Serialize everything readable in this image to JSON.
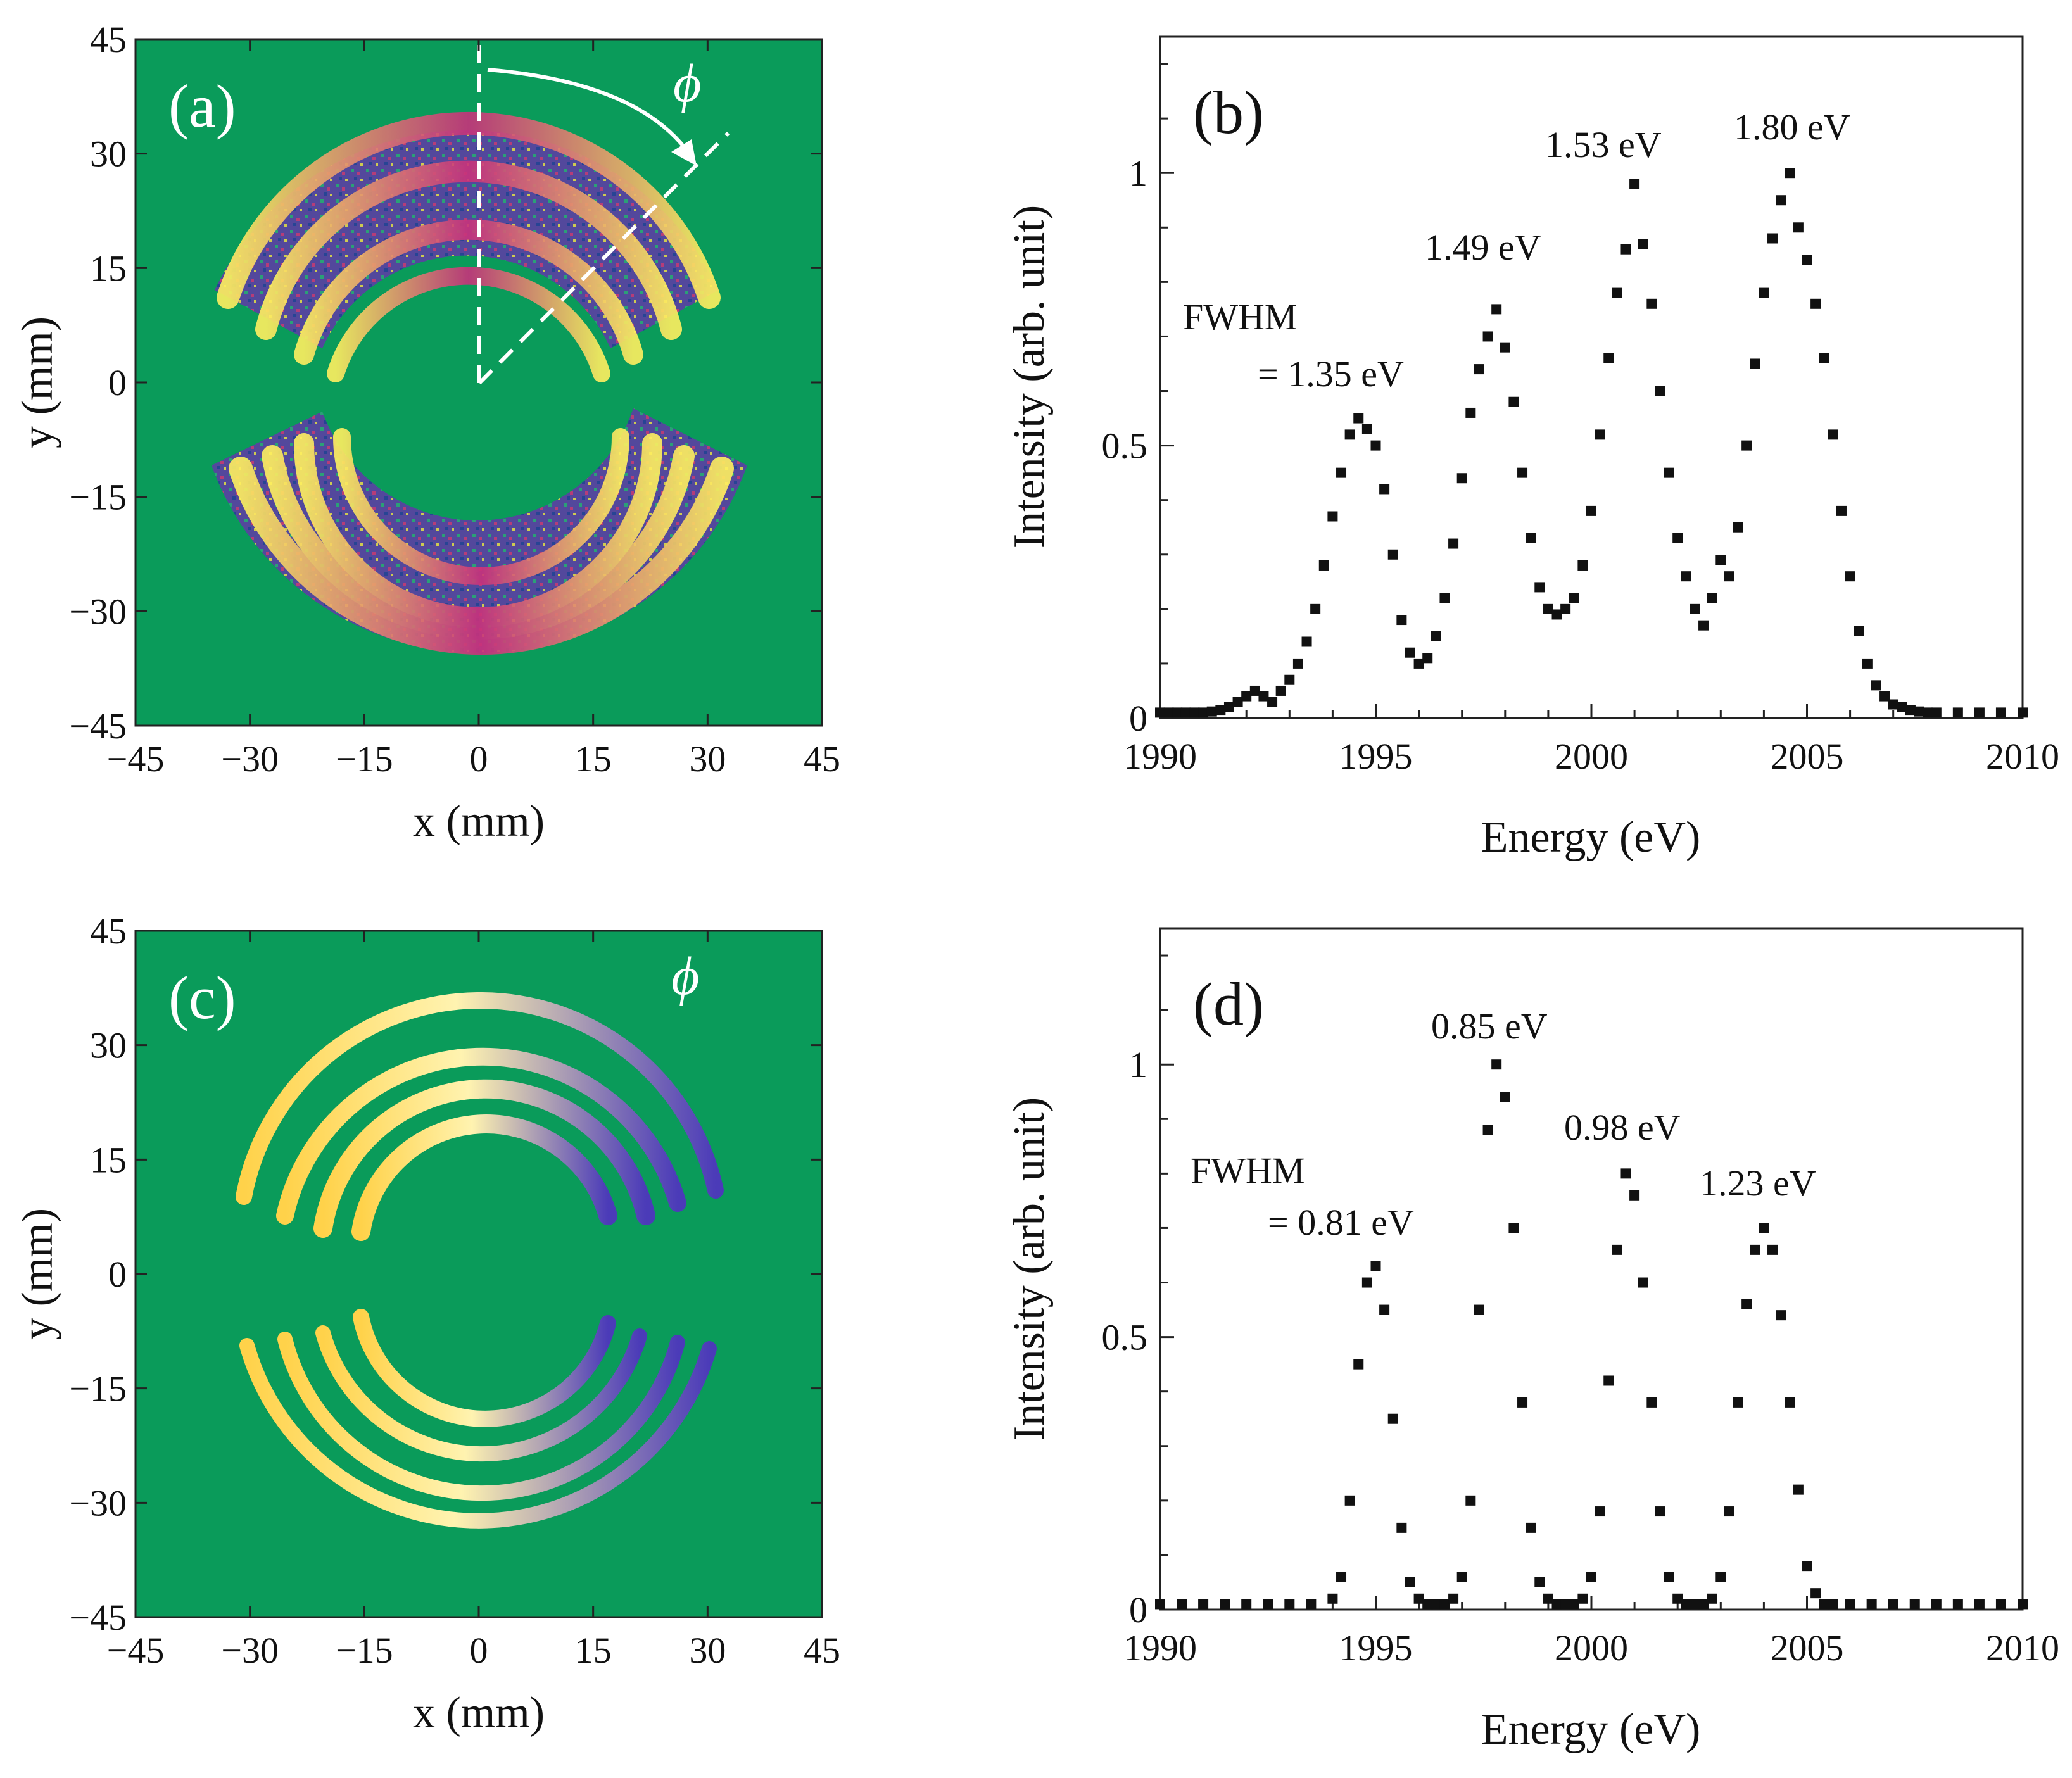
{
  "figure": {
    "panels": [
      {
        "id": "a",
        "label": "(a)",
        "kind": "detector-image",
        "xlabel": "x (mm)",
        "ylabel": "y (mm)",
        "xticks": [
          "−45",
          "−30",
          "−15",
          "0",
          "15",
          "30",
          "45"
        ],
        "yticks": [
          "45",
          "30",
          "15",
          "0",
          "−15",
          "−30",
          "−45"
        ],
        "phi_label": "ϕ",
        "colors": {
          "background": "#0a9b5a",
          "low": "#3a3aa8",
          "mid": "#c8327c",
          "high": "#fff060"
        }
      },
      {
        "id": "c",
        "label": "(c)",
        "kind": "detector-image",
        "xlabel": "x (mm)",
        "ylabel": "y (mm)",
        "xticks": [
          "−45",
          "−30",
          "−15",
          "0",
          "15",
          "30",
          "45"
        ],
        "yticks": [
          "45",
          "30",
          "15",
          "0",
          "−15",
          "−30",
          "−45"
        ],
        "phi_label": "ϕ",
        "colors": {
          "background": "#0a9b5a",
          "low": "#3030a0",
          "mid": "#e0306a",
          "high": "#fff3b0"
        }
      }
    ]
  },
  "chart_data": [
    {
      "panel": "(b)",
      "type": "scatter",
      "xlabel": "Energy (eV)",
      "ylabel": "Intensity (arb. unit)",
      "xlim": [
        1990,
        2010
      ],
      "ylim": [
        0,
        1.25
      ],
      "xticks": [
        1990,
        1995,
        2000,
        2005,
        2010
      ],
      "yticks": [
        0,
        0.5,
        1
      ],
      "ytick_labels": [
        "0",
        "0.5",
        "1"
      ],
      "annotations": {
        "fwhm_line1": "FWHM",
        "fwhm_line2": "= 1.35 eV",
        "peak2": "1.49 eV",
        "peak3": "1.53 eV",
        "peak4": "1.80 eV"
      },
      "points": {
        "x": [
          1990.0,
          1990.2,
          1990.4,
          1990.6,
          1990.8,
          1991.0,
          1991.2,
          1991.4,
          1991.6,
          1991.8,
          1992.0,
          1992.2,
          1992.4,
          1992.6,
          1992.8,
          1993.0,
          1993.2,
          1993.4,
          1993.6,
          1993.8,
          1994.0,
          1994.2,
          1994.4,
          1994.6,
          1994.8,
          1995.0,
          1995.2,
          1995.4,
          1995.6,
          1995.8,
          1996.0,
          1996.2,
          1996.4,
          1996.6,
          1996.8,
          1997.0,
          1997.2,
          1997.4,
          1997.6,
          1997.8,
          1998.0,
          1998.2,
          1998.4,
          1998.6,
          1998.8,
          1999.0,
          1999.2,
          1999.4,
          1999.6,
          1999.8,
          2000.0,
          2000.2,
          2000.4,
          2000.6,
          2000.8,
          2001.0,
          2001.2,
          2001.4,
          2001.6,
          2001.8,
          2002.0,
          2002.2,
          2002.4,
          2002.6,
          2002.8,
          2003.0,
          2003.2,
          2003.4,
          2003.6,
          2003.8,
          2004.0,
          2004.2,
          2004.4,
          2004.6,
          2004.8,
          2005.0,
          2005.2,
          2005.4,
          2005.6,
          2005.8,
          2006.0,
          2006.2,
          2006.4,
          2006.6,
          2006.8,
          2007.0,
          2007.2,
          2007.4,
          2007.6,
          2007.8,
          2008.0,
          2008.5,
          2009.0,
          2009.5,
          2010.0
        ],
        "y": [
          0.01,
          0.01,
          0.01,
          0.01,
          0.01,
          0.01,
          0.012,
          0.015,
          0.02,
          0.03,
          0.04,
          0.05,
          0.04,
          0.03,
          0.05,
          0.07,
          0.1,
          0.14,
          0.2,
          0.28,
          0.37,
          0.45,
          0.52,
          0.55,
          0.53,
          0.5,
          0.42,
          0.3,
          0.18,
          0.12,
          0.1,
          0.11,
          0.15,
          0.22,
          0.32,
          0.44,
          0.56,
          0.64,
          0.7,
          0.75,
          0.68,
          0.58,
          0.45,
          0.33,
          0.24,
          0.2,
          0.19,
          0.2,
          0.22,
          0.28,
          0.38,
          0.52,
          0.66,
          0.78,
          0.86,
          0.98,
          0.87,
          0.76,
          0.6,
          0.45,
          0.33,
          0.26,
          0.2,
          0.17,
          0.22,
          0.29,
          0.26,
          0.35,
          0.5,
          0.65,
          0.78,
          0.88,
          0.95,
          1.0,
          0.9,
          0.84,
          0.76,
          0.66,
          0.52,
          0.38,
          0.26,
          0.16,
          0.1,
          0.06,
          0.04,
          0.025,
          0.02,
          0.015,
          0.012,
          0.01,
          0.01,
          0.01,
          0.01,
          0.01,
          0.01
        ]
      }
    },
    {
      "panel": "(d)",
      "type": "scatter",
      "xlabel": "Energy (eV)",
      "ylabel": "Intensity (arb. unit)",
      "xlim": [
        1990,
        2010
      ],
      "ylim": [
        0,
        1.25
      ],
      "xticks": [
        1990,
        1995,
        2000,
        2005,
        2010
      ],
      "yticks": [
        0,
        0.5,
        1
      ],
      "ytick_labels": [
        "0",
        "0.5",
        "1"
      ],
      "annotations": {
        "fwhm_line1": "FWHM",
        "fwhm_line2": "= 0.81 eV",
        "peak2": "0.85 eV",
        "peak3": "0.98 eV",
        "peak4": "1.23 eV"
      },
      "points": {
        "x": [
          1990.0,
          1990.5,
          1991.0,
          1991.5,
          1992.0,
          1992.5,
          1993.0,
          1993.5,
          1994.0,
          1994.2,
          1994.4,
          1994.6,
          1994.8,
          1995.0,
          1995.2,
          1995.4,
          1995.6,
          1995.8,
          1996.0,
          1996.2,
          1996.4,
          1996.6,
          1996.8,
          1997.0,
          1997.2,
          1997.4,
          1997.6,
          1997.8,
          1998.0,
          1998.2,
          1998.4,
          1998.6,
          1998.8,
          1999.0,
          1999.2,
          1999.4,
          1999.6,
          1999.8,
          2000.0,
          2000.2,
          2000.4,
          2000.6,
          2000.8,
          2001.0,
          2001.2,
          2001.4,
          2001.6,
          2001.8,
          2002.0,
          2002.2,
          2002.4,
          2002.6,
          2002.8,
          2003.0,
          2003.2,
          2003.4,
          2003.6,
          2003.8,
          2004.0,
          2004.2,
          2004.4,
          2004.6,
          2004.8,
          2005.0,
          2005.2,
          2005.4,
          2005.6,
          2006.0,
          2006.5,
          2007.0,
          2007.5,
          2008.0,
          2008.5,
          2009.0,
          2009.5,
          2010.0
        ],
        "y": [
          0.01,
          0.01,
          0.01,
          0.01,
          0.01,
          0.01,
          0.01,
          0.01,
          0.02,
          0.06,
          0.2,
          0.45,
          0.6,
          0.63,
          0.55,
          0.35,
          0.15,
          0.05,
          0.02,
          0.01,
          0.01,
          0.01,
          0.02,
          0.06,
          0.2,
          0.55,
          0.88,
          1.0,
          0.94,
          0.7,
          0.38,
          0.15,
          0.05,
          0.02,
          0.01,
          0.01,
          0.01,
          0.02,
          0.06,
          0.18,
          0.42,
          0.66,
          0.8,
          0.76,
          0.6,
          0.38,
          0.18,
          0.06,
          0.02,
          0.01,
          0.01,
          0.01,
          0.02,
          0.06,
          0.18,
          0.38,
          0.56,
          0.66,
          0.7,
          0.66,
          0.54,
          0.38,
          0.22,
          0.08,
          0.03,
          0.01,
          0.01,
          0.01,
          0.01,
          0.01,
          0.01,
          0.01,
          0.01,
          0.01,
          0.01,
          0.01
        ]
      }
    }
  ]
}
